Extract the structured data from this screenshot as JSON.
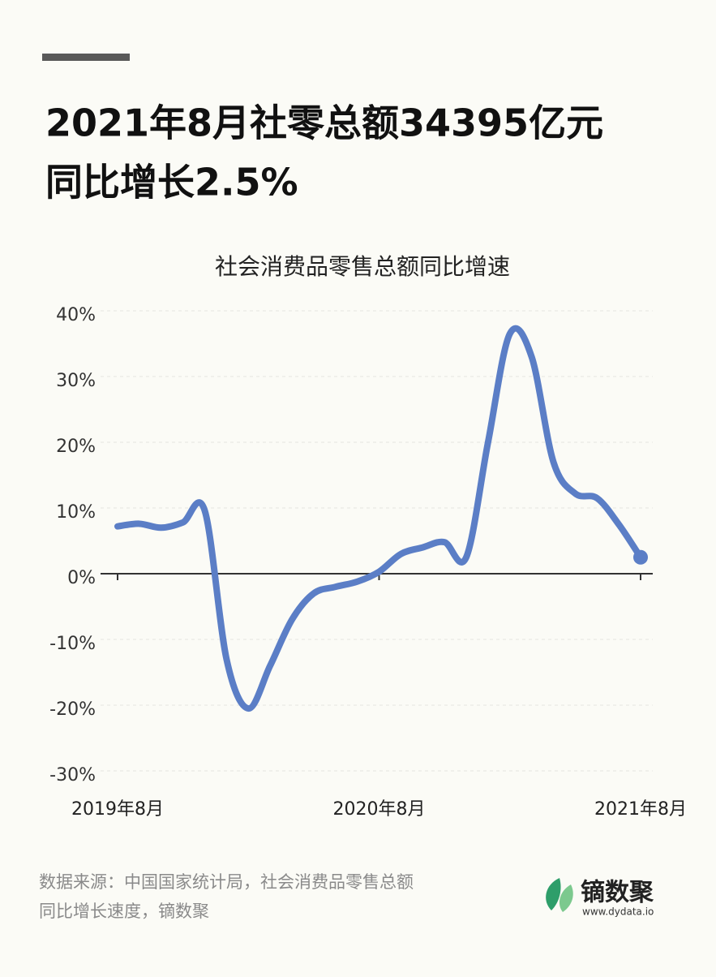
{
  "headline": [
    "2021年8月社零总额34395亿元",
    "同比增长2.5%"
  ],
  "chart_data": {
    "type": "line",
    "title": "社会消费品零售总额同比增速",
    "categories": [
      "2019年8月",
      null,
      null,
      null,
      null,
      null,
      null,
      null,
      null,
      null,
      null,
      null,
      "2020年8月",
      null,
      null,
      null,
      null,
      null,
      null,
      null,
      null,
      null,
      null,
      null,
      "2021年8月"
    ],
    "series": [
      {
        "name": "社会消费品零售总额同比增速",
        "color": "#5b7ec6",
        "values": [
          7.2,
          7.6,
          7.0,
          7.8,
          9.6,
          -13,
          -20.5,
          -14,
          -7,
          -3,
          -2,
          -1.2,
          0.3,
          3.0,
          4.0,
          4.8,
          2.5,
          20,
          36.5,
          33,
          17,
          12.2,
          11.5,
          7.5,
          2.5
        ]
      }
    ],
    "ylim": [
      -30,
      40
    ],
    "yticks": [
      {
        "value": -30,
        "label": "-30%"
      },
      {
        "value": -20,
        "label": "-20%"
      },
      {
        "value": -10,
        "label": "-10%"
      },
      {
        "value": 0,
        "label": "0%"
      },
      {
        "value": 10,
        "label": "10%"
      },
      {
        "value": 20,
        "label": "20%"
      },
      {
        "value": 30,
        "label": "30%"
      },
      {
        "value": 40,
        "label": "40%"
      }
    ],
    "grid": true
  },
  "source": [
    "数据来源：中国国家统计局，社会消费品零售总额",
    "同比增长速度，镝数聚"
  ],
  "logo": {
    "name": "镝数聚",
    "url": "www.dydata.io"
  }
}
